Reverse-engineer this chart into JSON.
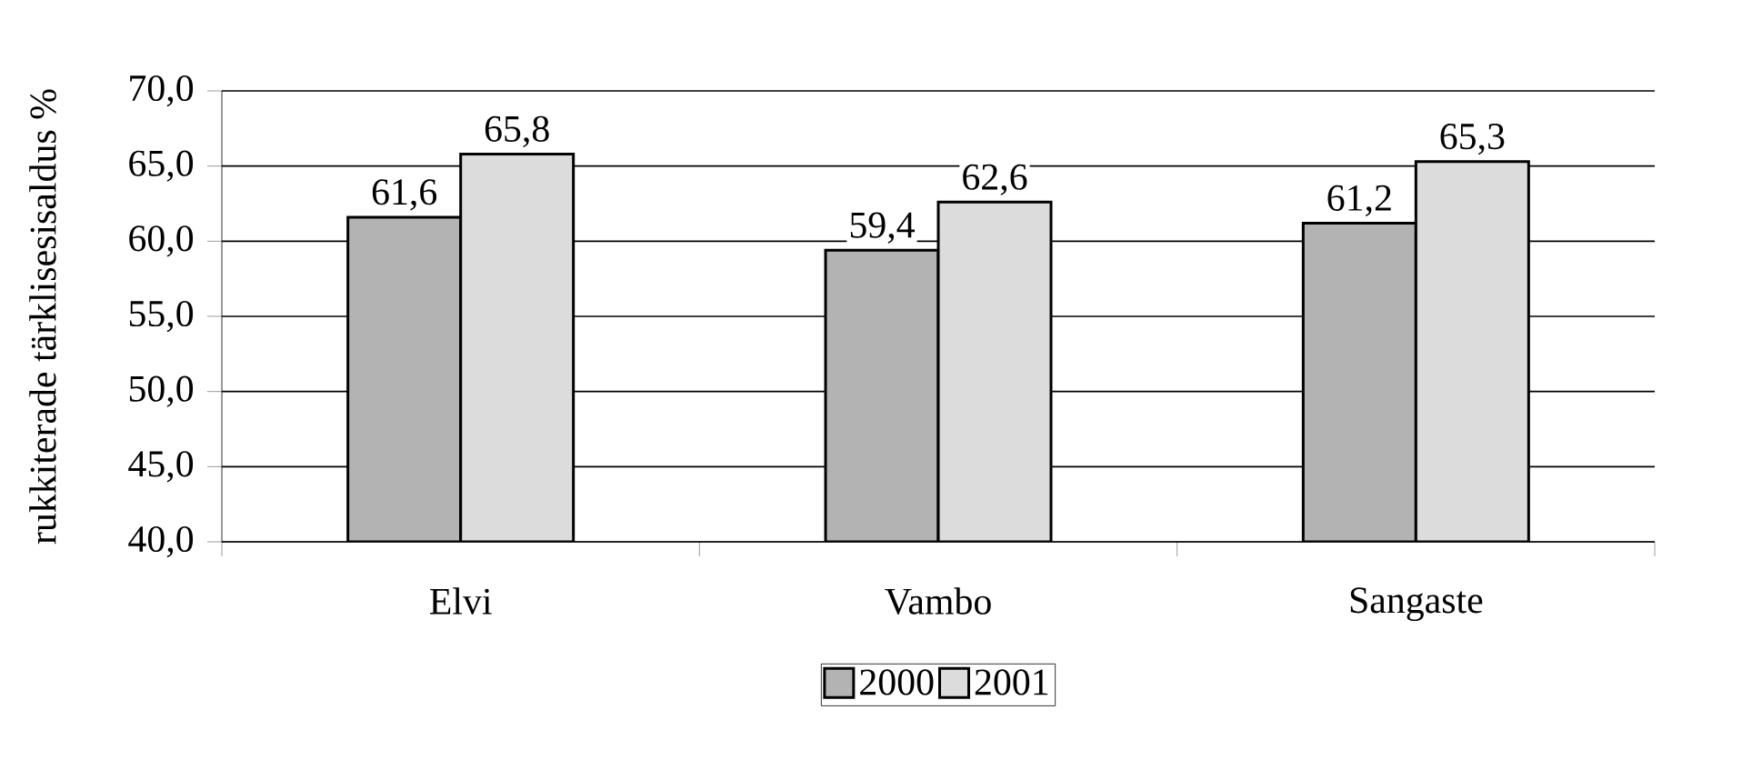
{
  "chart_data": {
    "type": "bar",
    "ylabel": "rukkiterade tärklisesisaldus %",
    "categories": [
      "Elvi",
      "Vambo",
      "Sangaste"
    ],
    "series": [
      {
        "name": "2000",
        "color": "#b3b3b3",
        "values": [
          61.6,
          59.4,
          61.2
        ],
        "value_labels": [
          "61,6",
          "59,4",
          "61,2"
        ]
      },
      {
        "name": "2001",
        "color": "#dcdcdc",
        "values": [
          65.8,
          62.6,
          65.3
        ],
        "value_labels": [
          "65,8",
          "62,6",
          "65,3"
        ]
      }
    ],
    "ylim": [
      40,
      70
    ],
    "yticks": [
      {
        "value": 40,
        "label": "40,0"
      },
      {
        "value": 45,
        "label": "45,0"
      },
      {
        "value": 50,
        "label": "50,0"
      },
      {
        "value": 55,
        "label": "55,0"
      },
      {
        "value": 60,
        "label": "60,0"
      },
      {
        "value": 65,
        "label": "65,0"
      },
      {
        "value": 70,
        "label": "70,0"
      }
    ],
    "grid": "y",
    "legend": "bottom"
  }
}
